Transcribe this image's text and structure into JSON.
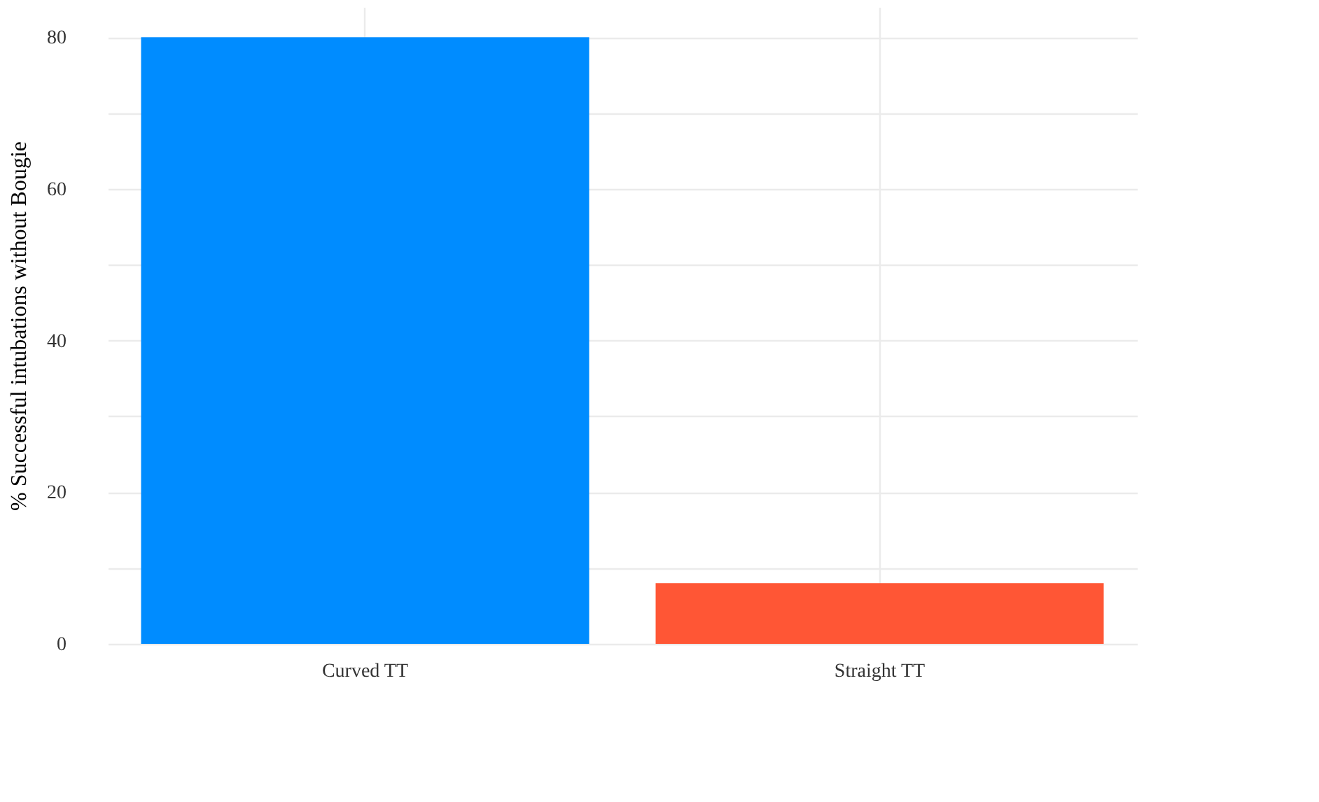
{
  "chart_data": {
    "type": "bar",
    "ylabel": "% Successful intubations without Bougie",
    "categories": [
      "Curved TT",
      "Straight TT"
    ],
    "values": [
      80,
      8
    ],
    "colors": [
      "#008cff",
      "#ff5635"
    ],
    "ylim": [
      0,
      84
    ],
    "yticks": [
      0,
      {
        "value": 10,
        "label": null
      },
      20,
      {
        "value": 30,
        "label": null
      },
      40,
      {
        "value": 50,
        "label": null
      },
      60,
      {
        "value": 70,
        "label": null
      },
      80
    ],
    "grid": true
  }
}
